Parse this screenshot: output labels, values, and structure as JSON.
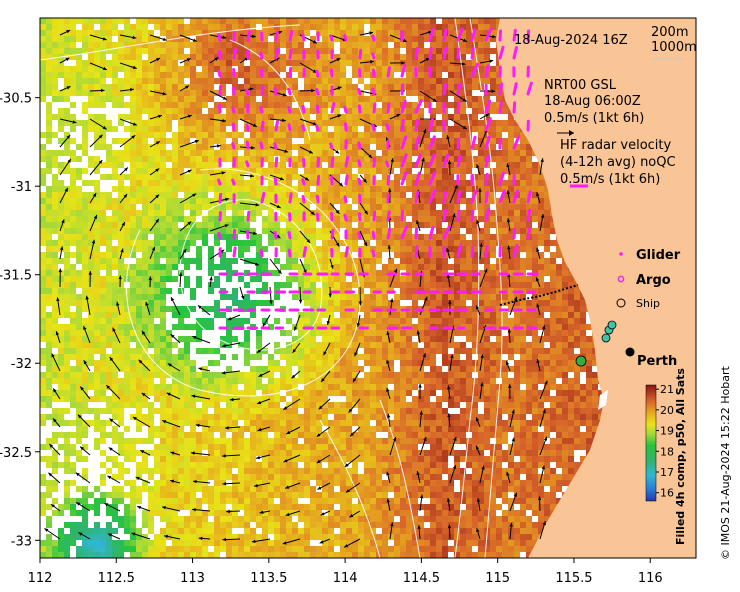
{
  "map": {
    "date_label": "18-Aug-2024 16Z",
    "depth_labels": [
      "200m",
      "1000m"
    ],
    "gsl": {
      "title": "NRT00 GSL",
      "time": "18-Aug 06:00Z",
      "scale": "0.5m/s (1kt 6h)"
    },
    "hf_radar": {
      "title": "HF radar velocity",
      "detail": "(4-12h avg) noQC",
      "scale": "0.5m/s (1kt 6h)"
    },
    "legend": {
      "glider": "Glider",
      "argo": "Argo",
      "ship": "Ship"
    },
    "place": "Perth",
    "colorbar": {
      "label": "Filled 4h comp, p50, All Sats",
      "ticks": [
        "21",
        "20",
        "19",
        "18",
        "17",
        "16"
      ],
      "min": 15.6,
      "max": 21.2
    },
    "credit": "© IMOS 21-Aug-2024 15:22 Hobart",
    "x_ticks": [
      "112",
      "112.5",
      "113",
      "113.5",
      "114",
      "114.5",
      "115",
      "115.5",
      "116"
    ],
    "y_ticks": [
      "-30.5",
      "-31",
      "-31.5",
      "-32",
      "-32.5",
      "-33"
    ],
    "lon_range": [
      112,
      116.3
    ],
    "lat_range": [
      -33.1,
      -30.05
    ],
    "colors": {
      "land": "#f9c496",
      "argo": "#e62ee6",
      "hf_vectors": "#ff1aff",
      "missing": "#ffffff"
    }
  }
}
